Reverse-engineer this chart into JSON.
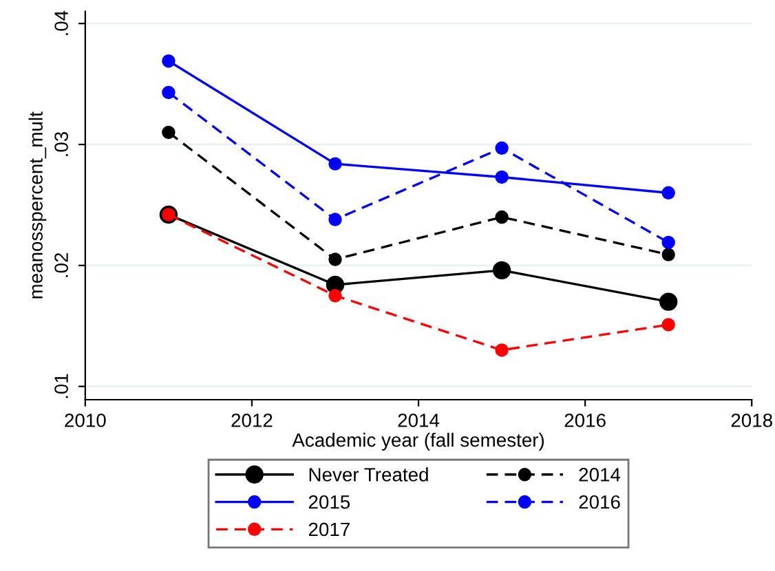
{
  "chart_data": {
    "type": "line",
    "xlabel": "Academic year (fall semester)",
    "ylabel": "meanosspercent_mult",
    "x": [
      2011,
      2013,
      2015,
      2017
    ],
    "series": [
      {
        "name": "Never Treated",
        "color": "#000000",
        "line_style": "solid",
        "values": [
          0.0242,
          0.0184,
          0.0196,
          0.017
        ]
      },
      {
        "name": "2014",
        "color": "#000000",
        "line_style": "dashed",
        "values": [
          0.031,
          0.0205,
          0.024,
          0.0209
        ]
      },
      {
        "name": "2015",
        "color": "#0000ff",
        "line_style": "solid",
        "values": [
          0.0369,
          0.0284,
          0.0273,
          0.026
        ]
      },
      {
        "name": "2016",
        "color": "#0000ff",
        "line_style": "dashed",
        "values": [
          0.0343,
          0.0238,
          0.0297,
          0.0219
        ]
      },
      {
        "name": "2017",
        "color": "#ff0000",
        "line_style": "dashed",
        "values": [
          0.0242,
          0.0175,
          0.013,
          0.0151
        ]
      }
    ],
    "xlim": [
      2010,
      2018
    ],
    "xticks": [
      2010,
      2012,
      2014,
      2016,
      2018
    ],
    "ylim": [
      0.0089,
      0.041
    ],
    "yticks": [
      {
        "value": 0.01,
        "label": ".01"
      },
      {
        "value": 0.02,
        "label": ".02"
      },
      {
        "value": 0.03,
        "label": ".03"
      },
      {
        "value": 0.04,
        "label": ".04"
      }
    ],
    "grid": "y",
    "legend": "bottom",
    "marker": "circle"
  }
}
